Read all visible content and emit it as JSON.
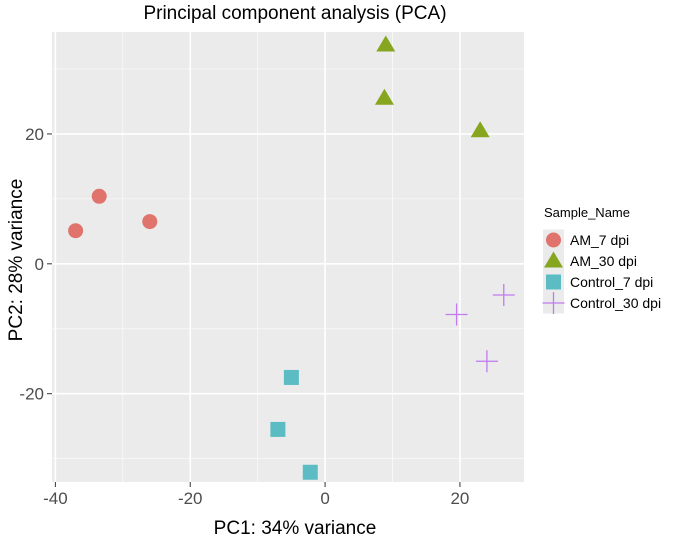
{
  "chart_data": {
    "type": "scatter",
    "title": "Principal component analysis (PCA)",
    "xlabel": "PC1: 34% variance",
    "ylabel": "PC2: 28% variance",
    "xlim": [
      -40.5,
      29.5
    ],
    "ylim": [
      -33.6,
      35.7
    ],
    "xticks": [
      -40,
      -20,
      0,
      20
    ],
    "yticks": [
      -20,
      0,
      20
    ],
    "xtick_labels": [
      "-40",
      "-20",
      "0",
      "20"
    ],
    "ytick_labels": [
      "-20",
      "0",
      "20"
    ],
    "grid": true,
    "legend_title": "Sample_Name",
    "legend_position": "right",
    "series": [
      {
        "name": "AM_7 dpi",
        "shape": "circle",
        "color": "#e0736b",
        "points": [
          [
            -37,
            5.1
          ],
          [
            -33.5,
            10.4
          ],
          [
            -26,
            6.5
          ]
        ]
      },
      {
        "name": "AM_30 dpi",
        "shape": "triangle",
        "color": "#86a61f",
        "points": [
          [
            9,
            33.7
          ],
          [
            8.8,
            25.5
          ],
          [
            23,
            20.5
          ]
        ]
      },
      {
        "name": "Control_7 dpi",
        "shape": "square",
        "color": "#5bbcc4",
        "points": [
          [
            -5,
            -17.5
          ],
          [
            -7,
            -25.5
          ],
          [
            -2.2,
            -32.1
          ]
        ]
      },
      {
        "name": "Control_30 dpi",
        "shape": "plus",
        "color": "#c07bf0",
        "points": [
          [
            19.5,
            -7.8
          ],
          [
            26.5,
            -4.8
          ],
          [
            24,
            -15
          ]
        ]
      }
    ]
  }
}
